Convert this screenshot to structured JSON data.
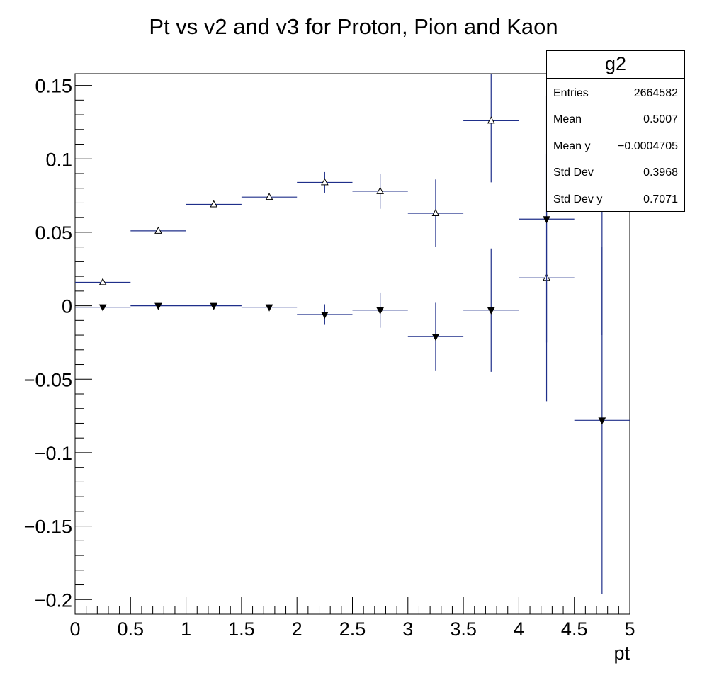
{
  "chart_data": {
    "type": "scatter",
    "title": "Pt vs v2 and v3 for Proton, Pion and Kaon",
    "xlabel": "pt",
    "ylabel": "",
    "xlim": [
      0,
      5
    ],
    "ylim": [
      -0.21,
      0.158
    ],
    "x_ticks": [
      0,
      0.5,
      1,
      1.5,
      2,
      2.5,
      3,
      3.5,
      4,
      4.5,
      5
    ],
    "x_tick_labels": [
      "0",
      "0.5",
      "1",
      "1.5",
      "2",
      "2.5",
      "3",
      "3.5",
      "4",
      "4.5",
      "5"
    ],
    "y_ticks": [
      0.15,
      0.1,
      0.05,
      0,
      -0.05,
      -0.1,
      -0.15,
      -0.2
    ],
    "y_tick_labels": [
      "0.15",
      "0.1",
      "0.05",
      "0",
      "−0.05",
      "−0.1",
      "−0.15",
      "−0.2"
    ],
    "x_bin_half_width": 0.25,
    "series": [
      {
        "name": "v2",
        "marker": "open-triangle-up",
        "x": [
          0.25,
          0.75,
          1.25,
          1.75,
          2.25,
          2.75,
          3.25,
          3.75,
          4.25,
          4.75
        ],
        "y": [
          0.016,
          0.051,
          0.069,
          0.074,
          0.084,
          0.078,
          0.063,
          0.126,
          0.019,
          0.095
        ],
        "yerr": [
          0.0005,
          0.001,
          0.0015,
          0.002,
          0.007,
          0.012,
          0.023,
          0.042,
          0.084,
          0.115
        ]
      },
      {
        "name": "v3",
        "marker": "filled-triangle-down",
        "x": [
          0.25,
          0.75,
          1.25,
          1.75,
          2.25,
          2.75,
          3.25,
          3.75,
          4.25,
          4.75
        ],
        "y": [
          -0.001,
          0.0,
          0.0,
          -0.001,
          -0.006,
          -0.003,
          -0.021,
          -0.003,
          0.059,
          -0.078
        ],
        "yerr": [
          0.0005,
          0.001,
          0.0015,
          0.002,
          0.007,
          0.012,
          0.023,
          0.042,
          0.084,
          0.118
        ]
      }
    ],
    "colors": {
      "axis": "#000000",
      "bin_line": "#1f2f8a",
      "error_line": "#1f2f8a",
      "marker": "#000000"
    }
  },
  "stats_box": {
    "name": "g2",
    "rows": [
      {
        "label": "Entries",
        "value": "2664582"
      },
      {
        "label": "Mean",
        "value": "0.5007"
      },
      {
        "label": "Mean y",
        "value": "−0.0004705"
      },
      {
        "label": "Std Dev",
        "value": "0.3968"
      },
      {
        "label": "Std Dev y",
        "value": "0.7071"
      }
    ]
  }
}
